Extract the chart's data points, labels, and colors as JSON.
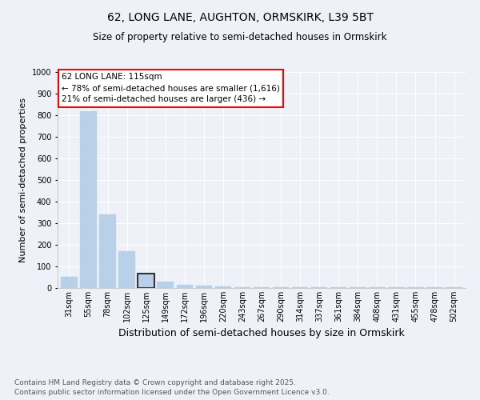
{
  "title_line1": "62, LONG LANE, AUGHTON, ORMSKIRK, L39 5BT",
  "title_line2": "Size of property relative to semi-detached houses in Ormskirk",
  "categories": [
    "31sqm",
    "55sqm",
    "78sqm",
    "102sqm",
    "125sqm",
    "149sqm",
    "172sqm",
    "196sqm",
    "220sqm",
    "243sqm",
    "267sqm",
    "290sqm",
    "314sqm",
    "337sqm",
    "361sqm",
    "384sqm",
    "408sqm",
    "431sqm",
    "455sqm",
    "478sqm",
    "502sqm"
  ],
  "values": [
    52,
    820,
    340,
    172,
    65,
    30,
    14,
    10,
    6,
    5,
    5,
    5,
    2,
    2,
    2,
    2,
    2,
    2,
    2,
    2,
    2
  ],
  "highlight_index": 4,
  "bar_color": "#b8d0e8",
  "bar_edge_color": "#b8d0e8",
  "highlight_edge_color": "#333333",
  "ylabel": "Number of semi-detached properties",
  "xlabel": "Distribution of semi-detached houses by size in Ormskirk",
  "ylim": [
    0,
    1000
  ],
  "yticks": [
    0,
    100,
    200,
    300,
    400,
    500,
    600,
    700,
    800,
    900,
    1000
  ],
  "annotation_title": "62 LONG LANE: 115sqm",
  "annotation_line1": "← 78% of semi-detached houses are smaller (1,616)",
  "annotation_line2": "21% of semi-detached houses are larger (436) →",
  "footnote_line1": "Contains HM Land Registry data © Crown copyright and database right 2025.",
  "footnote_line2": "Contains public sector information licensed under the Open Government Licence v3.0.",
  "bg_color": "#eef2f8",
  "grid_color": "#ffffff",
  "title_fontsize": 10,
  "subtitle_fontsize": 8.5,
  "ylabel_fontsize": 8,
  "xlabel_fontsize": 9,
  "tick_fontsize": 7,
  "annotation_fontsize": 7.5,
  "footnote_fontsize": 6.5
}
